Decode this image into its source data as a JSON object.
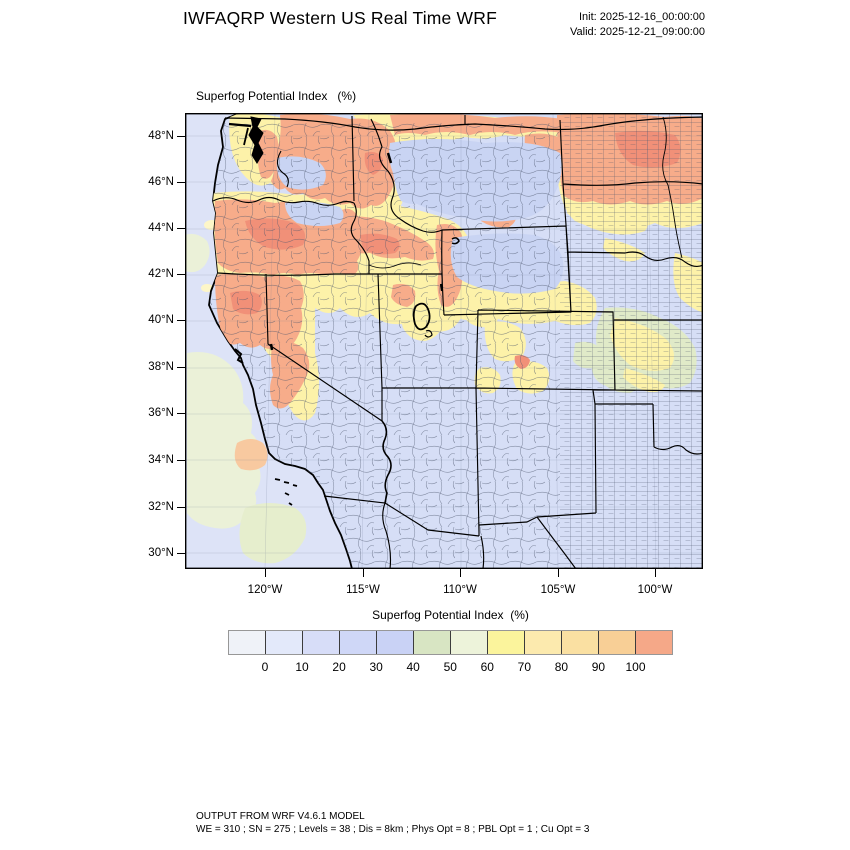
{
  "header": {
    "title": "IWFAQRP Western US Real Time WRF",
    "init": "Init: 2025-12-16_00:00:00",
    "valid": "Valid: 2025-12-21_09:00:00"
  },
  "map": {
    "field_label": "Superfog Potential Index   (%)",
    "lat_ticks": [
      "48°N",
      "46°N",
      "44°N",
      "42°N",
      "40°N",
      "38°N",
      "36°N",
      "34°N",
      "32°N",
      "30°N"
    ],
    "lon_ticks": [
      "120°W",
      "115°W",
      "110°W",
      "105°W",
      "100°W"
    ]
  },
  "colorbar": {
    "title": "Superfog Potential Index  (%)",
    "tick_labels": [
      "0",
      "10",
      "20",
      "30",
      "40",
      "50",
      "60",
      "70",
      "80",
      "90",
      "100"
    ],
    "cell_colors": [
      "#eff2f8",
      "#e3e9fa",
      "#d7ddf8",
      "#cfd7f7",
      "#c9d2f5",
      "#d8e5c3",
      "#edf3da",
      "#fbf49c",
      "#fceaae",
      "#fae0a2",
      "#f8cf96",
      "#f5a888"
    ],
    "levels": [
      0,
      10,
      20,
      30,
      40,
      50,
      60,
      70,
      80,
      90,
      100
    ]
  },
  "footer": {
    "line1": "OUTPUT FROM WRF V4.6.1 MODEL",
    "line2": "WE = 310 ; SN = 275 ; Levels = 38 ; Dis = 8km ; Phys Opt = 8 ; PBL Opt = 1 ; Cu Opt = 3"
  }
}
